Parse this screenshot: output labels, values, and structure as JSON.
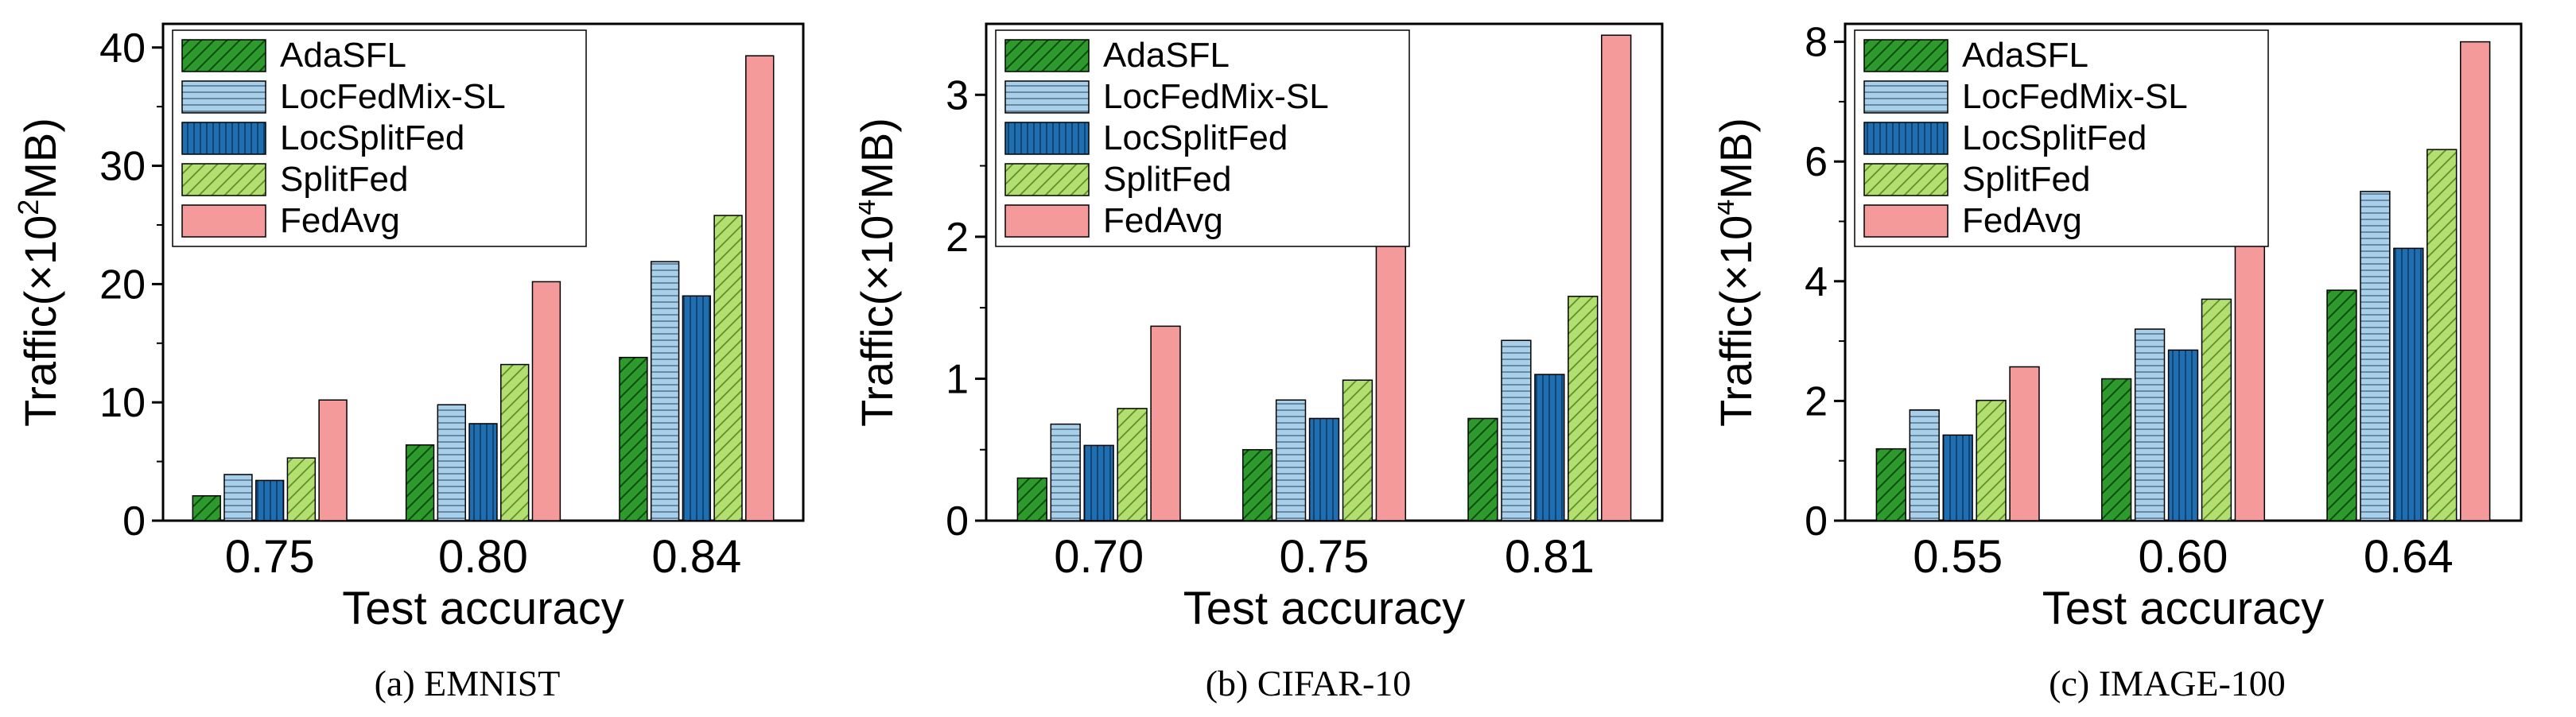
{
  "figure": {
    "series_colors": {
      "AdaSFL": "#2e9a2e",
      "LocFedMix-SL": "#a9d0ea",
      "LocSplitFed": "#1f6fb0",
      "SplitFed": "#b2df6f",
      "FedAvg": "#f59a9a"
    }
  },
  "chart_data": [
    {
      "type": "bar",
      "caption": "(a)  EMNIST",
      "ylabel_pre": "Traffic(×10",
      "ylabel_sup": "2",
      "ylabel_post": "MB)",
      "xlabel": "Test accuracy",
      "categories": [
        "0.75",
        "0.80",
        "0.84"
      ],
      "ylim": [
        0,
        42
      ],
      "yticks": [
        0,
        10,
        20,
        30,
        40
      ],
      "yticklabels": [
        "0",
        "10",
        "20",
        "30",
        "40"
      ],
      "legend_position": "top-left",
      "series": [
        {
          "name": "AdaSFL",
          "values": [
            2.1,
            6.4,
            13.8
          ]
        },
        {
          "name": "LocFedMix-SL",
          "values": [
            3.9,
            9.8,
            21.9
          ]
        },
        {
          "name": "LocSplitFed",
          "values": [
            3.4,
            8.2,
            19.0
          ]
        },
        {
          "name": "SplitFed",
          "values": [
            5.3,
            13.2,
            25.8
          ]
        },
        {
          "name": "FedAvg",
          "values": [
            10.2,
            20.2,
            39.3
          ]
        }
      ]
    },
    {
      "type": "bar",
      "caption": "(b)  CIFAR-10",
      "ylabel_pre": "Traffic(×10",
      "ylabel_sup": "4",
      "ylabel_post": "MB)",
      "xlabel": "Test accuracy",
      "categories": [
        "0.70",
        "0.75",
        "0.81"
      ],
      "ylim": [
        0,
        3.5
      ],
      "yticks": [
        0,
        1,
        2,
        3
      ],
      "yticklabels": [
        "0",
        "1",
        "2",
        "3"
      ],
      "legend_position": "top-left",
      "series": [
        {
          "name": "AdaSFL",
          "values": [
            0.3,
            0.5,
            0.72
          ]
        },
        {
          "name": "LocFedMix-SL",
          "values": [
            0.68,
            0.85,
            1.27
          ]
        },
        {
          "name": "LocSplitFed",
          "values": [
            0.53,
            0.72,
            1.03
          ]
        },
        {
          "name": "SplitFed",
          "values": [
            0.79,
            0.99,
            1.58
          ]
        },
        {
          "name": "FedAvg",
          "values": [
            1.37,
            2.06,
            3.42
          ]
        }
      ]
    },
    {
      "type": "bar",
      "caption": "(c)  IMAGE-100",
      "ylabel_pre": "Traffic(×10",
      "ylabel_sup": "4",
      "ylabel_post": "MB)",
      "xlabel": "Test accuracy",
      "categories": [
        "0.55",
        "0.60",
        "0.64"
      ],
      "ylim": [
        0,
        8.3
      ],
      "yticks": [
        0,
        2,
        4,
        6,
        8
      ],
      "yticklabels": [
        "0",
        "2",
        "4",
        "6",
        "8"
      ],
      "legend_position": "top-left",
      "series": [
        {
          "name": "AdaSFL",
          "values": [
            1.2,
            2.37,
            3.85
          ]
        },
        {
          "name": "LocFedMix-SL",
          "values": [
            1.85,
            3.2,
            5.5
          ]
        },
        {
          "name": "LocSplitFed",
          "values": [
            1.43,
            2.85,
            4.55
          ]
        },
        {
          "name": "SplitFed",
          "values": [
            2.01,
            3.7,
            6.2
          ]
        },
        {
          "name": "FedAvg",
          "values": [
            2.57,
            4.63,
            8.0
          ]
        }
      ]
    }
  ]
}
